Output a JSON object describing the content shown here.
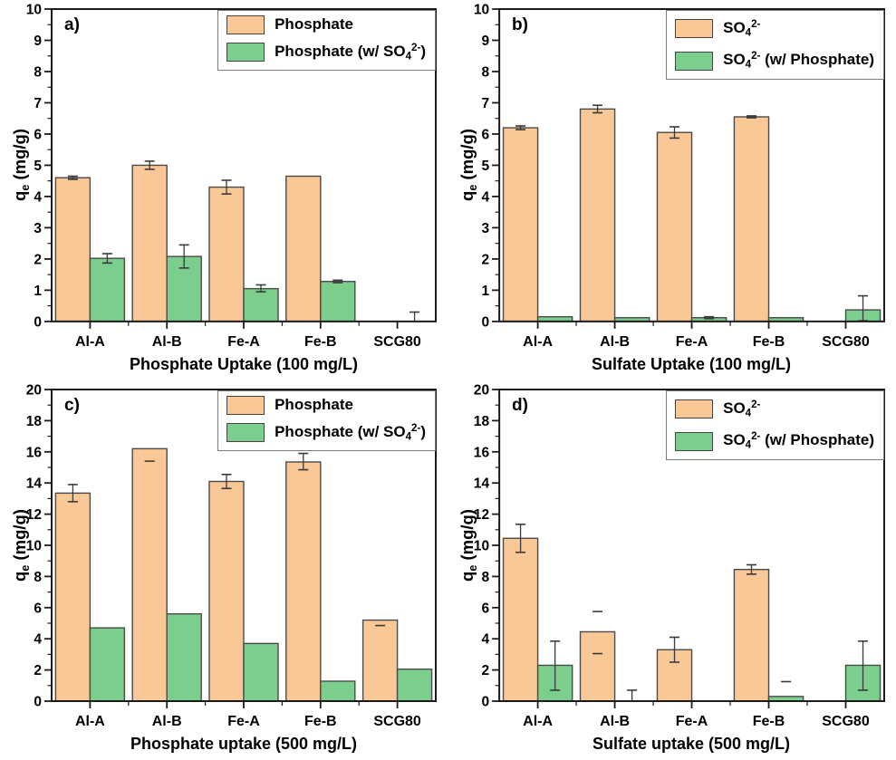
{
  "colors": {
    "bar_fill_orange": "#F9C896",
    "bar_fill_green": "#7CCE8C",
    "bar_border": "#4A4A4A",
    "error_bar": "#3A3A3A",
    "axis": "#1A1A1A",
    "legend_border": "#7B7B7B"
  },
  "chart_data": [
    {
      "type": "bar",
      "panel_label": "a)",
      "xlabel": "Phosphate Uptake (100 mg/L)",
      "ylabel": "qe (mg/g)",
      "ylabel_parts": [
        {
          "t": "q"
        },
        {
          "t": "e",
          "style": "sub"
        },
        {
          "t": " (mg/g)"
        }
      ],
      "ylim": [
        0,
        10
      ],
      "ytick_step": 1,
      "yminor_step": 0.5,
      "yticks": [
        0,
        1,
        2,
        3,
        4,
        5,
        6,
        7,
        8,
        9,
        10
      ],
      "categories": [
        "Al-A",
        "Al-B",
        "Fe-A",
        "Fe-B",
        "SCG80"
      ],
      "grid": false,
      "legend_position": "top-right",
      "series": [
        {
          "name": "Phosphate",
          "slug": "phosphate",
          "name_parts": [
            {
              "t": "Phosphate"
            }
          ],
          "color": "#F9C896",
          "values": [
            4.6,
            5.0,
            4.3,
            4.65,
            0
          ],
          "err_lo": [
            0.05,
            0.13,
            0.22,
            0,
            0
          ],
          "err_hi": [
            0.05,
            0.13,
            0.22,
            0,
            0
          ],
          "caps_only": [
            false,
            false,
            false,
            false,
            false
          ]
        },
        {
          "name": "Phosphate (w/ SO4^2-)",
          "slug": "phosphate-with-sulfate",
          "name_parts": [
            {
              "t": "Phosphate (w/ SO"
            },
            {
              "t": "4",
              "style": "sub"
            },
            {
              "t": "2-",
              "style": "sup"
            },
            {
              "t": ")"
            }
          ],
          "color": "#7CCE8C",
          "values": [
            2.02,
            2.08,
            1.05,
            1.28,
            0
          ],
          "err_lo": [
            0.15,
            0.37,
            0.1,
            0.04,
            0
          ],
          "err_hi": [
            0.15,
            0.37,
            0.12,
            0.04,
            0.3
          ],
          "caps_only": [
            false,
            false,
            false,
            false,
            false
          ]
        }
      ]
    },
    {
      "type": "bar",
      "panel_label": "b)",
      "xlabel": "Sulfate Uptake (100 mg/L)",
      "ylabel": "qe (mg/g)",
      "ylabel_parts": [
        {
          "t": "q"
        },
        {
          "t": "e",
          "style": "sub"
        },
        {
          "t": " (mg/g)"
        }
      ],
      "ylim": [
        0,
        10
      ],
      "ytick_step": 1,
      "yminor_step": 0.5,
      "yticks": [
        0,
        1,
        2,
        3,
        4,
        5,
        6,
        7,
        8,
        9,
        10
      ],
      "categories": [
        "Al-A",
        "Al-B",
        "Fe-A",
        "Fe-B",
        "SCG80"
      ],
      "grid": false,
      "legend_position": "top-right",
      "series": [
        {
          "name": "SO4^2-",
          "slug": "sulfate",
          "name_parts": [
            {
              "t": "SO"
            },
            {
              "t": "4",
              "style": "sub"
            },
            {
              "t": "2-",
              "style": "sup"
            }
          ],
          "color": "#F9C896",
          "values": [
            6.2,
            6.8,
            6.05,
            6.55,
            0
          ],
          "err_lo": [
            0.06,
            0.12,
            0.18,
            0.03,
            0
          ],
          "err_hi": [
            0.06,
            0.12,
            0.18,
            0.03,
            0
          ],
          "caps_only": [
            false,
            false,
            false,
            false,
            false
          ]
        },
        {
          "name": "SO4^2- (w/ Phosphate)",
          "slug": "sulfate-with-phosphate",
          "name_parts": [
            {
              "t": "SO"
            },
            {
              "t": "4",
              "style": "sub"
            },
            {
              "t": "2-",
              "style": "sup"
            },
            {
              "t": " (w/ Phosphate)"
            }
          ],
          "color": "#7CCE8C",
          "values": [
            0.15,
            0.12,
            0.12,
            0.12,
            0.37
          ],
          "err_lo": [
            0,
            0,
            0.03,
            0,
            0.35
          ],
          "err_hi": [
            0,
            0,
            0.03,
            0,
            0.45
          ],
          "caps_only": [
            false,
            false,
            false,
            false,
            false
          ]
        }
      ]
    },
    {
      "type": "bar",
      "panel_label": "c)",
      "xlabel": "Phosphate uptake (500 mg/L)",
      "ylabel": "qe (mg/g)",
      "ylabel_parts": [
        {
          "t": "q"
        },
        {
          "t": "e",
          "style": "sub"
        },
        {
          "t": " (mg/g)"
        }
      ],
      "ylim": [
        0,
        20
      ],
      "ytick_step": 2,
      "yminor_step": 1,
      "yticks": [
        0,
        2,
        4,
        6,
        8,
        10,
        12,
        14,
        16,
        18,
        20
      ],
      "categories": [
        "Al-A",
        "Al-B",
        "Fe-A",
        "Fe-B",
        "SCG80"
      ],
      "grid": false,
      "legend_position": "top-right",
      "series": [
        {
          "name": "Phosphate",
          "slug": "phosphate",
          "name_parts": [
            {
              "t": "Phosphate"
            }
          ],
          "color": "#F9C896",
          "values": [
            13.35,
            16.2,
            14.1,
            15.35,
            5.2
          ],
          "err_lo": [
            0.55,
            0.8,
            0.45,
            0.5,
            0.35
          ],
          "err_hi": [
            0.55,
            0,
            0.45,
            0.55,
            0
          ],
          "caps_only": [
            false,
            true,
            false,
            false,
            true
          ]
        },
        {
          "name": "Phosphate (w/ SO4^2-)",
          "slug": "phosphate-with-sulfate",
          "name_parts": [
            {
              "t": "Phosphate (w/ SO"
            },
            {
              "t": "4",
              "style": "sub"
            },
            {
              "t": "2-",
              "style": "sup"
            },
            {
              "t": ")"
            }
          ],
          "color": "#7CCE8C",
          "values": [
            4.7,
            5.6,
            3.7,
            1.28,
            2.05
          ],
          "err_lo": [
            0,
            0,
            0,
            0,
            0
          ],
          "err_hi": [
            0,
            0,
            0,
            0,
            0
          ],
          "caps_only": [
            false,
            false,
            false,
            false,
            false
          ]
        }
      ]
    },
    {
      "type": "bar",
      "panel_label": "d)",
      "xlabel": "Sulfate uptake (500 mg/L)",
      "ylabel": "qe (mg/g)",
      "ylabel_parts": [
        {
          "t": "q"
        },
        {
          "t": "e",
          "style": "sub"
        },
        {
          "t": " (mg/g)"
        }
      ],
      "ylim": [
        0,
        20
      ],
      "ytick_step": 2,
      "yminor_step": 1,
      "yticks": [
        0,
        2,
        4,
        6,
        8,
        10,
        12,
        14,
        16,
        18,
        20
      ],
      "categories": [
        "Al-A",
        "Al-B",
        "Fe-A",
        "Fe-B",
        "SCG80"
      ],
      "grid": false,
      "legend_position": "top-right",
      "series": [
        {
          "name": "SO4^2-",
          "slug": "sulfate",
          "name_parts": [
            {
              "t": "SO"
            },
            {
              "t": "4",
              "style": "sub"
            },
            {
              "t": "2-",
              "style": "sup"
            }
          ],
          "color": "#F9C896",
          "values": [
            10.45,
            4.45,
            3.3,
            8.45,
            0
          ],
          "err_lo": [
            0.9,
            1.4,
            0.8,
            0.3,
            0
          ],
          "err_hi": [
            0.9,
            1.3,
            0.8,
            0.3,
            0
          ],
          "caps_only": [
            false,
            true,
            false,
            false,
            false
          ]
        },
        {
          "name": "SO4^2- (w/ Phosphate)",
          "slug": "sulfate-with-phosphate",
          "name_parts": [
            {
              "t": "SO"
            },
            {
              "t": "4",
              "style": "sub"
            },
            {
              "t": "2-",
              "style": "sup"
            },
            {
              "t": " (w/ Phosphate)"
            }
          ],
          "color": "#7CCE8C",
          "values": [
            2.3,
            0,
            0,
            0.3,
            2.3
          ],
          "err_lo": [
            1.6,
            0,
            0,
            0,
            1.6
          ],
          "err_hi": [
            1.55,
            0.7,
            0,
            0.95,
            1.55
          ],
          "caps_only": [
            false,
            false,
            false,
            true,
            false
          ]
        }
      ]
    }
  ]
}
